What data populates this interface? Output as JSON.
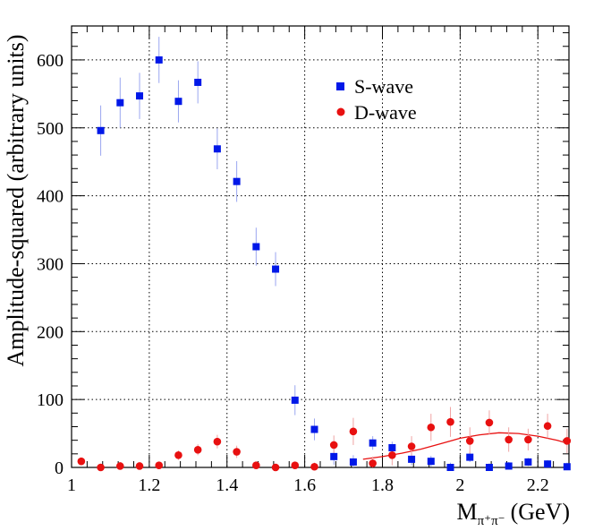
{
  "chart_data": {
    "type": "scatter",
    "title": "",
    "xlabel_main": "M",
    "xlabel_sub": "π⁺π⁻",
    "xlabel_unit": "(GeV)",
    "ylabel": "Amplitude-squared (arbitrary units)",
    "xlim": [
      1.0,
      2.28
    ],
    "ylim": [
      0,
      650
    ],
    "x_ticks": [
      1,
      1.2,
      1.4,
      1.6,
      1.8,
      2,
      2.2
    ],
    "x_tick_labels": [
      "1",
      "1.2",
      "1.4",
      "1.6",
      "1.8",
      "2",
      "2.2"
    ],
    "y_ticks": [
      0,
      100,
      200,
      300,
      400,
      500,
      600
    ],
    "y_tick_labels": [
      "0",
      "100",
      "200",
      "300",
      "400",
      "500",
      "600"
    ],
    "grid": true,
    "legend_position": "top-right",
    "series": [
      {
        "name": "S-wave",
        "marker": "square",
        "color": "#0018e8",
        "error_color": "#9aa6f0",
        "x": [
          1.075,
          1.125,
          1.175,
          1.225,
          1.275,
          1.325,
          1.375,
          1.425,
          1.475,
          1.525,
          1.575,
          1.625,
          1.675,
          1.725,
          1.775,
          1.825,
          1.875,
          1.925,
          1.975,
          2.025,
          2.075,
          2.125,
          2.175,
          2.225,
          2.275
        ],
        "y": [
          496,
          537,
          547,
          600,
          539,
          567,
          469,
          421,
          325,
          292,
          99,
          56,
          16,
          8,
          36,
          29,
          12,
          9,
          0,
          15,
          0,
          2,
          8,
          5,
          1
        ],
        "err": [
          37,
          37,
          34,
          34,
          31,
          31,
          30,
          30,
          28,
          25,
          22,
          16,
          12,
          10,
          10,
          9,
          9,
          8,
          7,
          7,
          6,
          6,
          6,
          6,
          6
        ]
      },
      {
        "name": "D-wave",
        "marker": "circle",
        "color": "#e81010",
        "error_color": "#f0a3a3",
        "x": [
          1.025,
          1.075,
          1.125,
          1.175,
          1.225,
          1.275,
          1.325,
          1.375,
          1.425,
          1.475,
          1.525,
          1.575,
          1.625,
          1.675,
          1.725,
          1.775,
          1.825,
          1.875,
          1.925,
          1.975,
          2.025,
          2.075,
          2.125,
          2.175,
          2.225,
          2.275
        ],
        "y": [
          9,
          0,
          2,
          2,
          3,
          18,
          26,
          38,
          23,
          3,
          0,
          3,
          1,
          33,
          53,
          6,
          18,
          31,
          59,
          67,
          39,
          66,
          41,
          41,
          61,
          39
        ],
        "err": [
          5,
          4,
          4,
          4,
          5,
          7,
          8,
          10,
          9,
          6,
          5,
          5,
          6,
          14,
          20,
          10,
          15,
          15,
          20,
          22,
          20,
          18,
          18,
          16,
          18,
          18
        ]
      }
    ],
    "fit_curve": {
      "name": "D-wave fit",
      "color": "#e81010",
      "x": [
        1.75,
        1.8,
        1.85,
        1.9,
        1.95,
        2.0,
        2.05,
        2.1,
        2.15,
        2.2,
        2.25,
        2.28
      ],
      "y": [
        12,
        16,
        21,
        27,
        35,
        43,
        48,
        51,
        50,
        46,
        40,
        35
      ]
    }
  }
}
